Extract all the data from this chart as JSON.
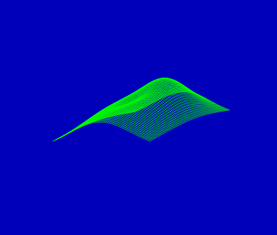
{
  "background_color": "#0000BB",
  "wire_color": "#00FF00",
  "wire_linewidth": 0.35,
  "nx": 60,
  "ny": 60,
  "elev": 12,
  "azim": -50,
  "figsize": [
    4.0,
    3.39
  ],
  "dpi": 100,
  "xlim": [
    -0.1,
    1.1
  ],
  "ylim": [
    -0.1,
    1.1
  ],
  "zlim": [
    -0.3,
    0.8
  ]
}
